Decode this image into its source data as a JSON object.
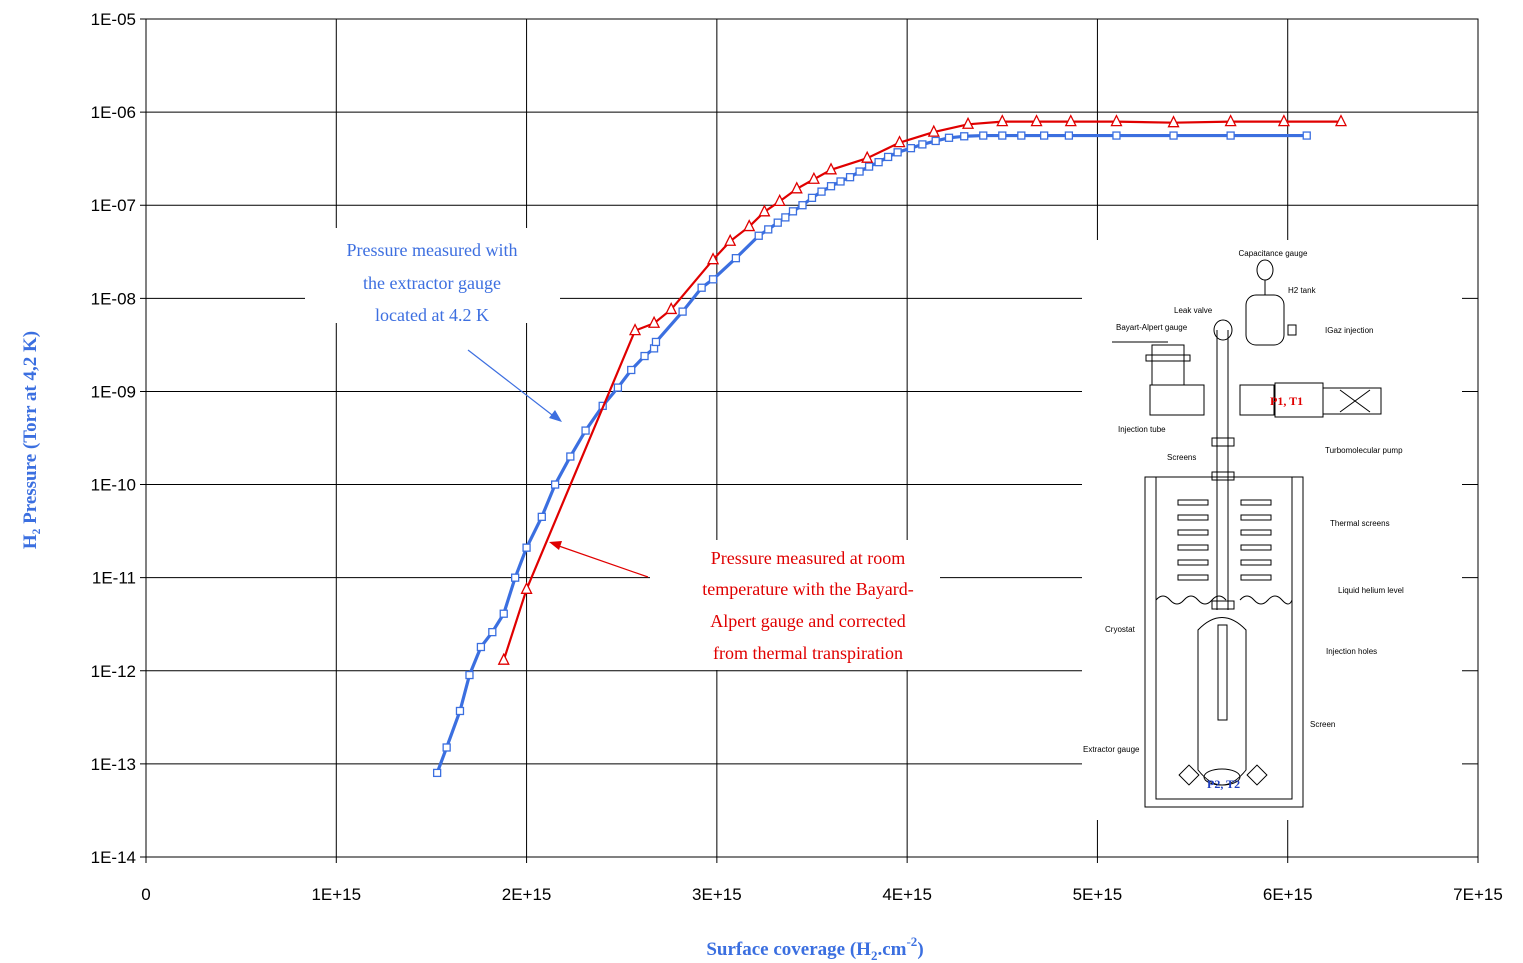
{
  "chart_data": {
    "type": "line",
    "xlabel": "Surface coverage (H",
    "xlabel_sub": "2",
    "xlabel_mid": ".cm",
    "xlabel_sup": "-2",
    "xlabel_end": ")",
    "ylabel": "H₂ Pressure  (Torr at 4,2 K)",
    "x_tick_labels": [
      "0",
      "1E+15",
      "2E+15",
      "3E+15",
      "4E+15",
      "5E+15",
      "6E+15",
      "7E+15"
    ],
    "y_tick_labels": [
      "1E-14",
      "1E-13",
      "1E-12",
      "1E-11",
      "1E-10",
      "1E-09",
      "1E-08",
      "1E-07",
      "1E-06",
      "1E-05"
    ],
    "xlim": [
      0,
      7000000000000000.0
    ],
    "ylim": [
      1e-14,
      1e-05
    ],
    "yscale": "log",
    "grid": true,
    "series": [
      {
        "color": "#3b6fe0",
        "marker": "square",
        "points": [
          [
            1530000000000000.0,
            8e-14
          ],
          [
            1580000000000000.0,
            1.5e-13
          ],
          [
            1650000000000000.0,
            3.7e-13
          ],
          [
            1700000000000000.0,
            9e-13
          ],
          [
            1760000000000000.0,
            1.8e-12
          ],
          [
            1820000000000000.0,
            2.6e-12
          ],
          [
            1880000000000000.0,
            4.1e-12
          ],
          [
            1940000000000000.0,
            1e-11
          ],
          [
            2000000000000000.0,
            2.1e-11
          ],
          [
            2080000000000000.0,
            4.5e-11
          ],
          [
            2150000000000000.0,
            1e-10
          ],
          [
            2230000000000000.0,
            2e-10
          ],
          [
            2310000000000000.0,
            3.8e-10
          ],
          [
            2400000000000000.0,
            7e-10
          ],
          [
            2480000000000000.0,
            1.1e-09
          ],
          [
            2550000000000000.0,
            1.7e-09
          ],
          [
            2620000000000000.0,
            2.4e-09
          ],
          [
            2670000000000000.0,
            2.9e-09
          ],
          [
            2680000000000000.0,
            3.4e-09
          ],
          [
            2820000000000000.0,
            7.2e-09
          ],
          [
            2920000000000000.0,
            1.3e-08
          ],
          [
            2980000000000000.0,
            1.6e-08
          ],
          [
            3100000000000000.0,
            2.7e-08
          ],
          [
            3220000000000000.0,
            4.7e-08
          ],
          [
            3270000000000000.0,
            5.5e-08
          ],
          [
            3320000000000000.0,
            6.5e-08
          ],
          [
            3360000000000000.0,
            7.4e-08
          ],
          [
            3400000000000000.0,
            8.6e-08
          ],
          [
            3450000000000000.0,
            1e-07
          ],
          [
            3500000000000000.0,
            1.2e-07
          ],
          [
            3550000000000000.0,
            1.4e-07
          ],
          [
            3600000000000000.0,
            1.6e-07
          ],
          [
            3650000000000000.0,
            1.8e-07
          ],
          [
            3700000000000000.0,
            2e-07
          ],
          [
            3750000000000000.0,
            2.3e-07
          ],
          [
            3800000000000000.0,
            2.6e-07
          ],
          [
            3850000000000000.0,
            2.9e-07
          ],
          [
            3900000000000000.0,
            3.3e-07
          ],
          [
            3950000000000000.0,
            3.7e-07
          ],
          [
            4020000000000000.0,
            4.1e-07
          ],
          [
            4080000000000000.0,
            4.5e-07
          ],
          [
            4150000000000000.0,
            4.9e-07
          ],
          [
            4220000000000000.0,
            5.3e-07
          ],
          [
            4300000000000000.0,
            5.5e-07
          ],
          [
            4400000000000000.0,
            5.6e-07
          ],
          [
            4500000000000000.0,
            5.6e-07
          ],
          [
            4600000000000000.0,
            5.6e-07
          ],
          [
            4720000000000000.0,
            5.6e-07
          ],
          [
            4850000000000000.0,
            5.6e-07
          ],
          [
            5100000000000000.0,
            5.6e-07
          ],
          [
            5400000000000000.0,
            5.6e-07
          ],
          [
            5700000000000000.0,
            5.6e-07
          ],
          [
            6100000000000000.0,
            5.6e-07
          ]
        ]
      },
      {
        "color": "#e00000",
        "marker": "triangle",
        "points": [
          [
            1880000000000000.0,
            1.3e-12
          ],
          [
            2000000000000000.0,
            7.5e-12
          ],
          [
            2570000000000000.0,
            4.5e-09
          ],
          [
            2670000000000000.0,
            5.4e-09
          ],
          [
            2760000000000000.0,
            7.6e-09
          ],
          [
            2980000000000000.0,
            2.6e-08
          ],
          [
            3070000000000000.0,
            4.1e-08
          ],
          [
            3170000000000000.0,
            5.9e-08
          ],
          [
            3250000000000000.0,
            8.5e-08
          ],
          [
            3330000000000000.0,
            1.1e-07
          ],
          [
            3420000000000000.0,
            1.5e-07
          ],
          [
            3510000000000000.0,
            1.9e-07
          ],
          [
            3600000000000000.0,
            2.4e-07
          ],
          [
            3790000000000000.0,
            3.2e-07
          ],
          [
            3960000000000000.0,
            4.7e-07
          ],
          [
            4140000000000000.0,
            6.1e-07
          ],
          [
            4320000000000000.0,
            7.4e-07
          ],
          [
            4500000000000000.0,
            7.9e-07
          ],
          [
            4680000000000000.0,
            7.9e-07
          ],
          [
            4860000000000000.0,
            7.9e-07
          ],
          [
            5100000000000000.0,
            7.9e-07
          ],
          [
            5400000000000000.0,
            7.7e-07
          ],
          [
            5700000000000000.0,
            7.9e-07
          ],
          [
            5980000000000000.0,
            7.9e-07
          ],
          [
            6280000000000000.0,
            7.9e-07
          ]
        ]
      }
    ],
    "annotations": [
      {
        "lines": [
          "Pressure measured with",
          "the extractor gauge",
          "located at 4.2 K"
        ],
        "color": "#3d6fe0"
      },
      {
        "lines": [
          "Pressure measured at room",
          "temperature with the Bayard-",
          "Alpert gauge and corrected",
          "from thermal transpiration"
        ],
        "color": "#e00000"
      }
    ]
  },
  "inset_diagram": {
    "labels": {
      "capacitance": "Capacitance gauge",
      "h2_tank": "H2 tank",
      "leak_valve": "Leak valve",
      "bayart": "Bayart-Alpert gauge",
      "gaz_injection": "IGaz injection",
      "p1t1": "P1, T1",
      "injection_tube": "Injection tube",
      "turbo": "Turbomolecular pump",
      "screens": "Screens",
      "thermal_screens": "Thermal screens",
      "helium_level": "Liquid helium level",
      "cryostat": "Cryostat",
      "injection_holes": "Injection holes",
      "screen": "Screen",
      "extractor": "Extractor gauge",
      "p2t2": "P2, T2"
    }
  }
}
